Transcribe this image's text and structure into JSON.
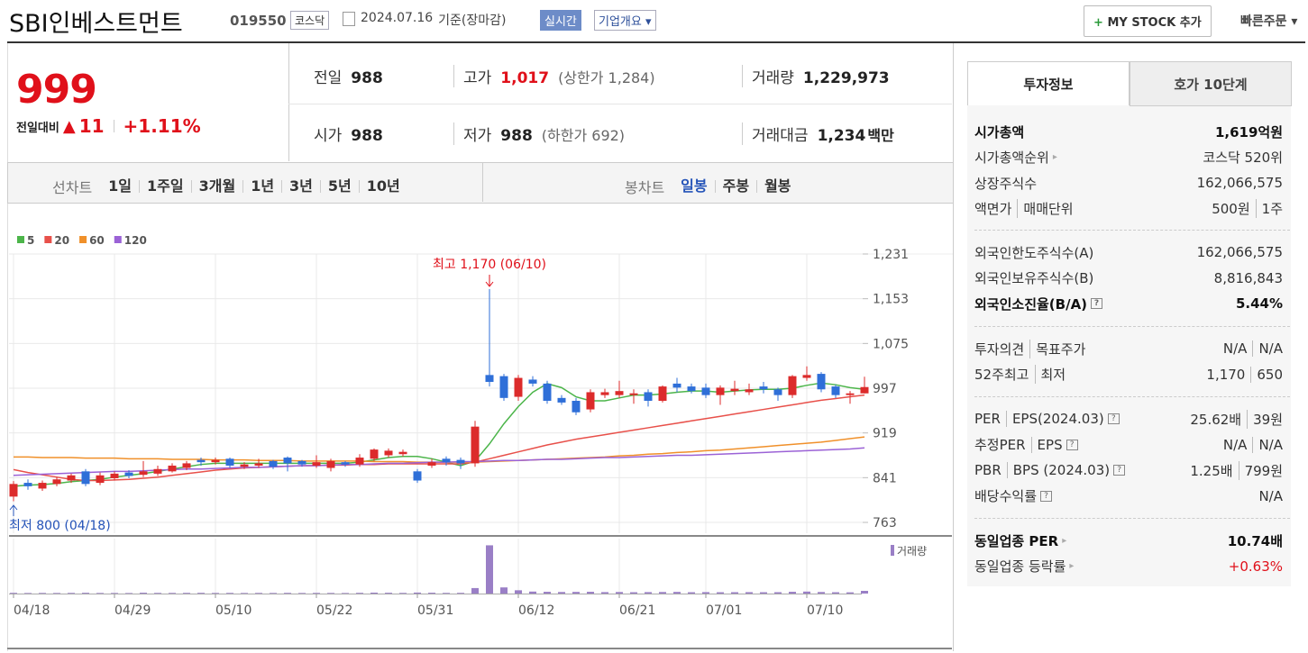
{
  "header": {
    "name": "SBI인베스트먼트",
    "code": "019550",
    "market": "코스닥",
    "date": "2024.07.16",
    "basis": "기준(장마감)",
    "realtime": "실시간",
    "overview": "기업개요",
    "my_stock": "MY STOCK 추가",
    "quick_order": "빠른주문"
  },
  "price": {
    "current": "999",
    "change_label": "전일대비",
    "change": "11",
    "rate": "+1.11%"
  },
  "summary": [
    {
      "label": "전일",
      "value": "988"
    },
    {
      "label": "고가",
      "value": "1,017",
      "note": "(상한가 1,284)",
      "up": true
    },
    {
      "label": "거래량",
      "value": "1,229,973"
    },
    {
      "label": "시가",
      "value": "988"
    },
    {
      "label": "저가",
      "value": "988",
      "note": "(하한가 692)"
    },
    {
      "label": "거래대금",
      "value": "1,234",
      "unit": "백만"
    }
  ],
  "tabs": {
    "line_label": "선차트",
    "line_periods": [
      "1일",
      "1주일",
      "3개월",
      "1년",
      "3년",
      "5년",
      "10년"
    ],
    "candle_label": "봉차트",
    "candle_periods": [
      "일봉",
      "주봉",
      "월봉"
    ],
    "active": "일봉"
  },
  "chart_data": {
    "type": "candlestick",
    "categories": [
      "04/18",
      null,
      null,
      null,
      null,
      null,
      null,
      "04/29",
      null,
      null,
      null,
      null,
      null,
      null,
      "05/10",
      null,
      null,
      null,
      null,
      null,
      null,
      "05/22",
      null,
      null,
      null,
      null,
      null,
      null,
      "05/31",
      null,
      null,
      null,
      null,
      null,
      null,
      "06/12",
      null,
      null,
      null,
      null,
      null,
      null,
      "06/21",
      null,
      null,
      null,
      null,
      null,
      "07/01",
      null,
      null,
      null,
      null,
      null,
      null,
      "07/10",
      null,
      null,
      null,
      null
    ],
    "open": [
      808,
      832,
      822,
      830,
      836,
      852,
      832,
      840,
      850,
      846,
      848,
      852,
      858,
      872,
      868,
      874,
      860,
      862,
      870,
      876,
      870,
      862,
      858,
      868,
      864,
      874,
      880,
      882,
      852,
      862,
      874,
      872,
      866,
      1020,
      1018,
      982,
      1012,
      1005,
      980,
      975,
      960,
      985,
      985,
      985,
      990,
      975,
      1005,
      1000,
      998,
      985,
      992,
      990,
      1000,
      995,
      985,
      1015,
      1022,
      1000,
      985,
      988
    ],
    "high": [
      835,
      838,
      836,
      842,
      848,
      856,
      850,
      852,
      854,
      870,
      862,
      866,
      870,
      876,
      876,
      876,
      868,
      874,
      872,
      878,
      872,
      880,
      874,
      870,
      882,
      892,
      892,
      890,
      856,
      874,
      878,
      876,
      940,
      1170,
      1022,
      1020,
      1018,
      1010,
      985,
      980,
      995,
      996,
      1010,
      995,
      995,
      1002,
      1015,
      1005,
      1005,
      1002,
      1010,
      1005,
      1008,
      998,
      1020,
      1035,
      1025,
      1003,
      992,
      1017
    ],
    "low": [
      800,
      820,
      818,
      826,
      832,
      826,
      828,
      836,
      840,
      842,
      844,
      850,
      854,
      862,
      864,
      858,
      856,
      858,
      856,
      852,
      860,
      858,
      852,
      860,
      860,
      870,
      876,
      878,
      832,
      858,
      862,
      856,
      860,
      1000,
      975,
      975,
      1000,
      970,
      968,
      950,
      955,
      980,
      980,
      970,
      965,
      972,
      990,
      988,
      980,
      968,
      985,
      985,
      988,
      975,
      980,
      1010,
      990,
      980,
      970,
      988
    ],
    "close": [
      830,
      826,
      832,
      838,
      845,
      830,
      845,
      848,
      844,
      852,
      856,
      862,
      866,
      868,
      872,
      862,
      864,
      866,
      860,
      866,
      864,
      868,
      870,
      864,
      876,
      890,
      888,
      886,
      836,
      868,
      868,
      866,
      930,
      1008,
      980,
      1015,
      1005,
      975,
      972,
      955,
      990,
      990,
      992,
      988,
      975,
      1000,
      998,
      992,
      985,
      998,
      996,
      995,
      995,
      985,
      1018,
      1020,
      995,
      985,
      988,
      999
    ],
    "up_color": "#dc2b2b",
    "down_color": "#2f6fd8",
    "ylim": [
      763,
      1231
    ],
    "yticks": [
      763,
      {
        "value": 841,
        "label": "841"
      },
      919,
      997,
      {
        "value": 1075,
        "label": "1,075"
      },
      {
        "value": 1153,
        "label": "1,153"
      },
      {
        "value": 1231,
        "label": "1,231"
      }
    ],
    "grid": true,
    "series": [
      {
        "name": "5",
        "color": "#4cb54a",
        "values": [
          826,
          828,
          829,
          831,
          834,
          836,
          838,
          842,
          845,
          848,
          852,
          856,
          860,
          864,
          866,
          866,
          866,
          866,
          866,
          866,
          866,
          866,
          866,
          866,
          868,
          872,
          876,
          878,
          878,
          874,
          868,
          862,
          870,
          900,
          935,
          965,
          990,
          1005,
          998,
          982,
          975,
          975,
          980,
          985,
          985,
          987,
          990,
          992,
          992,
          990,
          992,
          994,
          995,
          995,
          997,
          1002,
          1006,
          1003,
          998,
          995
        ]
      },
      {
        "name": "20",
        "color": "#e8504a",
        "values": [
          855,
          850,
          846,
          842,
          838,
          836,
          836,
          837,
          838,
          840,
          842,
          845,
          848,
          851,
          854,
          856,
          858,
          859,
          860,
          861,
          862,
          862,
          863,
          863,
          864,
          864,
          865,
          865,
          865,
          865,
          865,
          865,
          868,
          874,
          880,
          886,
          892,
          898,
          903,
          908,
          912,
          916,
          920,
          924,
          928,
          932,
          936,
          940,
          944,
          948,
          952,
          956,
          960,
          964,
          968,
          972,
          976,
          979,
          982,
          985
        ]
      },
      {
        "name": "60",
        "color": "#f0902a",
        "values": [
          877,
          877,
          876,
          876,
          876,
          875,
          875,
          875,
          874,
          874,
          874,
          873,
          873,
          873,
          872,
          872,
          872,
          871,
          871,
          871,
          870,
          870,
          870,
          870,
          870,
          869,
          869,
          869,
          868,
          868,
          868,
          868,
          868,
          869,
          870,
          871,
          872,
          873,
          874,
          875,
          876,
          877,
          879,
          880,
          882,
          883,
          885,
          886,
          888,
          889,
          891,
          893,
          895,
          897,
          899,
          901,
          903,
          906,
          909,
          912
        ]
      },
      {
        "name": "120",
        "color": "#9b62d6",
        "values": [
          845,
          846,
          847,
          848,
          849,
          850,
          851,
          852,
          852,
          853,
          854,
          855,
          856,
          856,
          857,
          858,
          859,
          859,
          860,
          861,
          862,
          862,
          863,
          864,
          864,
          865,
          866,
          866,
          867,
          868,
          868,
          869,
          869,
          870,
          871,
          871,
          872,
          873,
          873,
          874,
          875,
          876,
          876,
          877,
          878,
          879,
          880,
          880,
          881,
          882,
          883,
          884,
          885,
          886,
          887,
          888,
          889,
          890,
          891,
          893
        ]
      }
    ],
    "volume": {
      "name": "거래량",
      "color": "#9a7fc6",
      "ylim": [
        0,
        23000000
      ],
      "values": [
        320000,
        250000,
        280000,
        260000,
        300000,
        350000,
        270000,
        260000,
        240000,
        380000,
        300000,
        290000,
        310000,
        330000,
        280000,
        300000,
        260000,
        290000,
        270000,
        310000,
        260000,
        300000,
        280000,
        250000,
        330000,
        420000,
        360000,
        300000,
        450000,
        380000,
        300000,
        320000,
        2500000,
        22000000,
        2800000,
        1500000,
        900000,
        800000,
        700000,
        750000,
        800000,
        650000,
        700000,
        600000,
        650000,
        700000,
        750000,
        600000,
        650000,
        600000,
        620000,
        640000,
        600000,
        620000,
        800000,
        900000,
        700000,
        600000,
        550000,
        1229973
      ]
    },
    "annotations": [
      {
        "text": "최고 1,170 (06/10)"
      },
      {
        "text": "최저 800 (04/18)"
      }
    ]
  },
  "side": {
    "tabs": [
      "투자정보",
      "호가 10단계"
    ],
    "groups": [
      [
        {
          "label": [
            "시가총액"
          ],
          "value": [
            "1,619억원"
          ],
          "strong": true
        },
        {
          "label": [
            "시가총액순위"
          ],
          "value": [
            "코스닥 520위"
          ],
          "more": true
        },
        {
          "label": [
            "상장주식수"
          ],
          "value": [
            "162,066,575"
          ]
        },
        {
          "label": [
            "액면가",
            "매매단위"
          ],
          "value": [
            "500원",
            "1주"
          ]
        }
      ],
      [
        {
          "label": [
            "외국인한도주식수(A)"
          ],
          "value": [
            "162,066,575"
          ]
        },
        {
          "label": [
            "외국인보유주식수(B)"
          ],
          "value": [
            "8,816,843"
          ]
        },
        {
          "label": [
            "외국인소진율(B/A)"
          ],
          "value": [
            "5.44%"
          ],
          "strong": true,
          "help": true
        }
      ],
      [
        {
          "label": [
            "투자의견",
            "목표주가"
          ],
          "value": [
            "N/A",
            "N/A"
          ]
        },
        {
          "label": [
            "52주최고",
            "최저"
          ],
          "value": [
            "1,170",
            "650"
          ]
        }
      ],
      [
        {
          "label": [
            "PER",
            "EPS(2024.03)"
          ],
          "value": [
            "25.62배",
            "39원"
          ],
          "help": true
        },
        {
          "label": [
            "추정PER",
            "EPS"
          ],
          "value": [
            "N/A",
            "N/A"
          ],
          "help": true
        },
        {
          "label": [
            "PBR",
            "BPS (2024.03)"
          ],
          "value": [
            "1.25배",
            "799원"
          ],
          "help": true
        },
        {
          "label": [
            "배당수익률"
          ],
          "value": [
            "N/A"
          ],
          "help": true
        }
      ],
      [
        {
          "label": [
            "동일업종 PER"
          ],
          "value": [
            "10.74배"
          ],
          "strong": true,
          "more": true
        },
        {
          "label": [
            "동일업종 등락률"
          ],
          "value": [
            "+0.63%"
          ],
          "more": true,
          "up": true
        }
      ]
    ]
  }
}
